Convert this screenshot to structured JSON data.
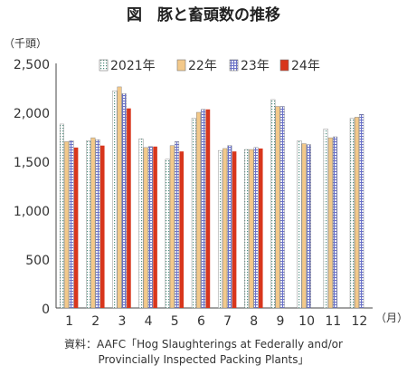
{
  "chart_data": {
    "type": "bar",
    "title": "図　豚と畜頭数の推移",
    "y_unit_label": "（千頭）",
    "x_unit_label": "（月）",
    "categories": [
      "1",
      "2",
      "3",
      "4",
      "5",
      "6",
      "7",
      "8",
      "9",
      "10",
      "11",
      "12"
    ],
    "ylim": [
      0,
      2500
    ],
    "y_ticks": [
      "0",
      "500",
      "1,000",
      "1,500",
      "2,000",
      "2,500"
    ],
    "grid": false,
    "legend_position": "top",
    "series": [
      {
        "name": "2021年",
        "style": "dotted",
        "color": "#7fb3a6",
        "values": [
          1880,
          1710,
          2220,
          1730,
          1520,
          1940,
          1610,
          1620,
          2130,
          1710,
          1830,
          1940
        ]
      },
      {
        "name": "22年",
        "style": "solid",
        "color": "#f3c98a",
        "values": [
          1700,
          1740,
          2260,
          1640,
          1660,
          2000,
          1630,
          1620,
          2060,
          1680,
          1740,
          1950
        ]
      },
      {
        "name": "23年",
        "style": "hatched",
        "color": "#8f96d6",
        "values": [
          1710,
          1720,
          2190,
          1650,
          1700,
          2030,
          1660,
          1640,
          2060,
          1670,
          1750,
          1980
        ]
      },
      {
        "name": "24年",
        "style": "solid",
        "color": "#d8361c",
        "values": [
          1640,
          1660,
          2040,
          1650,
          1600,
          2030,
          1600,
          1630,
          null,
          null,
          null,
          null
        ]
      }
    ],
    "source": [
      "資料：AAFC「Hog Slaughterings at Federally and/or",
      "Provincially Inspected Packing Plants」"
    ]
  }
}
